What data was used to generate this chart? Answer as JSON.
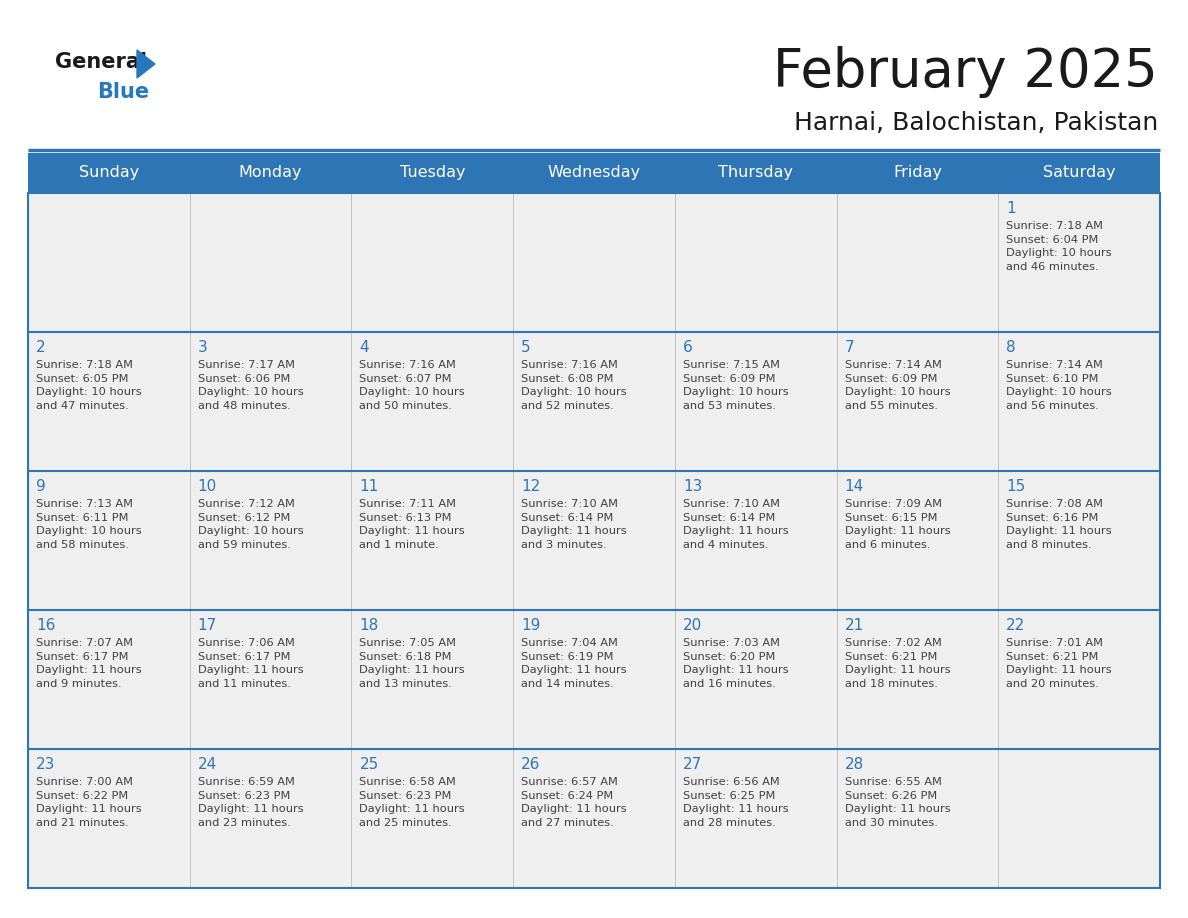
{
  "title": "February 2025",
  "subtitle": "Harnai, Balochistan, Pakistan",
  "header_bg_color": "#2E75B6",
  "header_text_color": "#FFFFFF",
  "cell_bg_color": "#EFEFEF",
  "separator_color": "#2E75B6",
  "day_number_color": "#2E75B6",
  "text_color": "#404040",
  "days_of_week": [
    "Sunday",
    "Monday",
    "Tuesday",
    "Wednesday",
    "Thursday",
    "Friday",
    "Saturday"
  ],
  "logo_general_color": "#1a1a1a",
  "logo_blue_color": "#2878BE",
  "weeks": [
    {
      "days": [
        {
          "day": null,
          "info": null
        },
        {
          "day": null,
          "info": null
        },
        {
          "day": null,
          "info": null
        },
        {
          "day": null,
          "info": null
        },
        {
          "day": null,
          "info": null
        },
        {
          "day": null,
          "info": null
        },
        {
          "day": 1,
          "info": "Sunrise: 7:18 AM\nSunset: 6:04 PM\nDaylight: 10 hours\nand 46 minutes."
        }
      ]
    },
    {
      "days": [
        {
          "day": 2,
          "info": "Sunrise: 7:18 AM\nSunset: 6:05 PM\nDaylight: 10 hours\nand 47 minutes."
        },
        {
          "day": 3,
          "info": "Sunrise: 7:17 AM\nSunset: 6:06 PM\nDaylight: 10 hours\nand 48 minutes."
        },
        {
          "day": 4,
          "info": "Sunrise: 7:16 AM\nSunset: 6:07 PM\nDaylight: 10 hours\nand 50 minutes."
        },
        {
          "day": 5,
          "info": "Sunrise: 7:16 AM\nSunset: 6:08 PM\nDaylight: 10 hours\nand 52 minutes."
        },
        {
          "day": 6,
          "info": "Sunrise: 7:15 AM\nSunset: 6:09 PM\nDaylight: 10 hours\nand 53 minutes."
        },
        {
          "day": 7,
          "info": "Sunrise: 7:14 AM\nSunset: 6:09 PM\nDaylight: 10 hours\nand 55 minutes."
        },
        {
          "day": 8,
          "info": "Sunrise: 7:14 AM\nSunset: 6:10 PM\nDaylight: 10 hours\nand 56 minutes."
        }
      ]
    },
    {
      "days": [
        {
          "day": 9,
          "info": "Sunrise: 7:13 AM\nSunset: 6:11 PM\nDaylight: 10 hours\nand 58 minutes."
        },
        {
          "day": 10,
          "info": "Sunrise: 7:12 AM\nSunset: 6:12 PM\nDaylight: 10 hours\nand 59 minutes."
        },
        {
          "day": 11,
          "info": "Sunrise: 7:11 AM\nSunset: 6:13 PM\nDaylight: 11 hours\nand 1 minute."
        },
        {
          "day": 12,
          "info": "Sunrise: 7:10 AM\nSunset: 6:14 PM\nDaylight: 11 hours\nand 3 minutes."
        },
        {
          "day": 13,
          "info": "Sunrise: 7:10 AM\nSunset: 6:14 PM\nDaylight: 11 hours\nand 4 minutes."
        },
        {
          "day": 14,
          "info": "Sunrise: 7:09 AM\nSunset: 6:15 PM\nDaylight: 11 hours\nand 6 minutes."
        },
        {
          "day": 15,
          "info": "Sunrise: 7:08 AM\nSunset: 6:16 PM\nDaylight: 11 hours\nand 8 minutes."
        }
      ]
    },
    {
      "days": [
        {
          "day": 16,
          "info": "Sunrise: 7:07 AM\nSunset: 6:17 PM\nDaylight: 11 hours\nand 9 minutes."
        },
        {
          "day": 17,
          "info": "Sunrise: 7:06 AM\nSunset: 6:17 PM\nDaylight: 11 hours\nand 11 minutes."
        },
        {
          "day": 18,
          "info": "Sunrise: 7:05 AM\nSunset: 6:18 PM\nDaylight: 11 hours\nand 13 minutes."
        },
        {
          "day": 19,
          "info": "Sunrise: 7:04 AM\nSunset: 6:19 PM\nDaylight: 11 hours\nand 14 minutes."
        },
        {
          "day": 20,
          "info": "Sunrise: 7:03 AM\nSunset: 6:20 PM\nDaylight: 11 hours\nand 16 minutes."
        },
        {
          "day": 21,
          "info": "Sunrise: 7:02 AM\nSunset: 6:21 PM\nDaylight: 11 hours\nand 18 minutes."
        },
        {
          "day": 22,
          "info": "Sunrise: 7:01 AM\nSunset: 6:21 PM\nDaylight: 11 hours\nand 20 minutes."
        }
      ]
    },
    {
      "days": [
        {
          "day": 23,
          "info": "Sunrise: 7:00 AM\nSunset: 6:22 PM\nDaylight: 11 hours\nand 21 minutes."
        },
        {
          "day": 24,
          "info": "Sunrise: 6:59 AM\nSunset: 6:23 PM\nDaylight: 11 hours\nand 23 minutes."
        },
        {
          "day": 25,
          "info": "Sunrise: 6:58 AM\nSunset: 6:23 PM\nDaylight: 11 hours\nand 25 minutes."
        },
        {
          "day": 26,
          "info": "Sunrise: 6:57 AM\nSunset: 6:24 PM\nDaylight: 11 hours\nand 27 minutes."
        },
        {
          "day": 27,
          "info": "Sunrise: 6:56 AM\nSunset: 6:25 PM\nDaylight: 11 hours\nand 28 minutes."
        },
        {
          "day": 28,
          "info": "Sunrise: 6:55 AM\nSunset: 6:26 PM\nDaylight: 11 hours\nand 30 minutes."
        },
        {
          "day": null,
          "info": null
        }
      ]
    }
  ]
}
